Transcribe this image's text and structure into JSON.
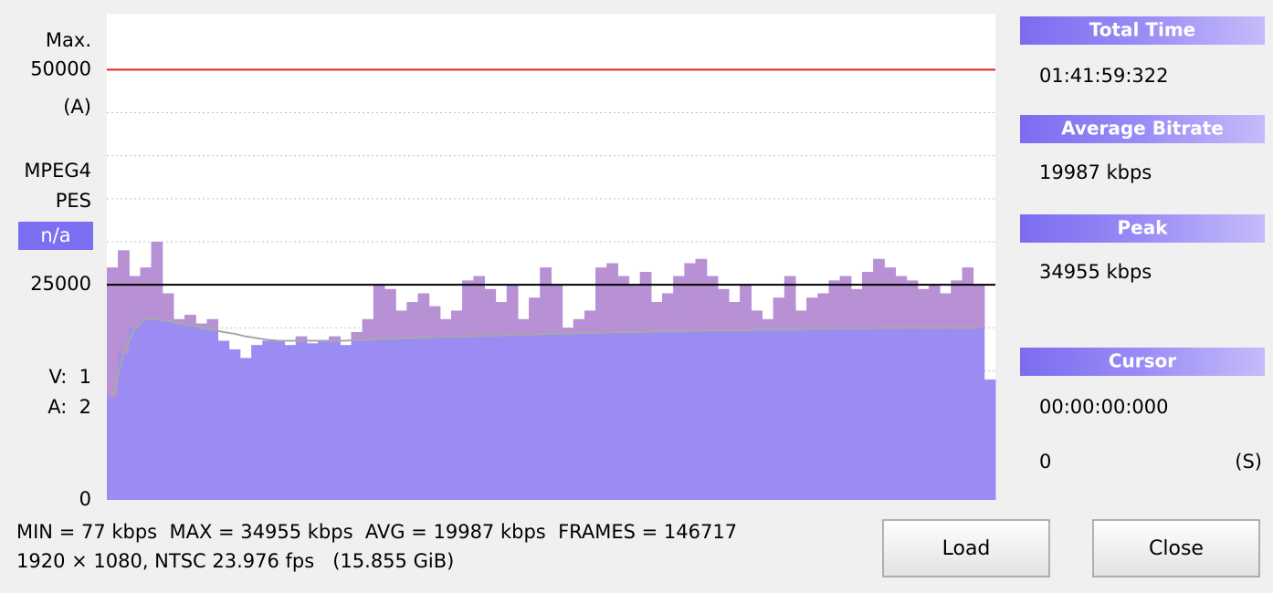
{
  "chart_data": {
    "type": "bar",
    "values": [
      27000,
      29000,
      26000,
      27000,
      30000,
      24000,
      21000,
      21500,
      20500,
      21000,
      18500,
      17500,
      16500,
      18000,
      18500,
      18500,
      18000,
      19000,
      18200,
      18500,
      19000,
      18000,
      19500,
      21000,
      25000,
      24500,
      22000,
      23000,
      24000,
      22500,
      21000,
      22000,
      25500,
      26000,
      24500,
      23000,
      25000,
      21000,
      23500,
      27000,
      25000,
      20000,
      21000,
      22000,
      27000,
      27500,
      26000,
      25000,
      26500,
      23000,
      24000,
      26000,
      27500,
      28000,
      26000,
      24500,
      23000,
      25000,
      22000,
      21000,
      23500,
      26000,
      22000,
      23500,
      24000,
      25500,
      26000,
      24500,
      26500,
      28000,
      27000,
      26000,
      25500,
      24500,
      25000,
      24000,
      25500,
      27000,
      25000,
      14000
    ],
    "average": [
      12000,
      17000,
      20000,
      21000,
      21000,
      20800,
      20500,
      20300,
      20000,
      19800,
      19500,
      19300,
      19000,
      18800,
      18600,
      18500,
      18500,
      18500,
      18500,
      18500,
      18500,
      18500,
      18600,
      18600,
      18700,
      18700,
      18800,
      18800,
      18900,
      18900,
      19000,
      19000,
      19000,
      19100,
      19100,
      19100,
      19200,
      19200,
      19200,
      19300,
      19300,
      19300,
      19400,
      19400,
      19400,
      19500,
      19500,
      19500,
      19500,
      19600,
      19600,
      19600,
      19600,
      19700,
      19700,
      19700,
      19700,
      19700,
      19800,
      19800,
      19800,
      19800,
      19800,
      19900,
      19900,
      19900,
      19900,
      19900,
      19900,
      20000,
      20000,
      20000,
      20000,
      20000,
      20000,
      20000,
      20000,
      20000,
      20000,
      null
    ],
    "color": "#9b8cf4",
    "above_average_color": "#b890d4",
    "average_color": "#a8a8a8",
    "ylim": [
      0,
      56500
    ],
    "yticks": [
      0,
      25000,
      50000
    ],
    "gridlines": [
      5000,
      10000,
      15000,
      20000,
      30000,
      35000,
      40000,
      45000
    ],
    "max_line_color": "#e02020",
    "mid_line_color": "#000000",
    "left_labels": [
      "Max.",
      "(A)",
      "MPEG4",
      "PES",
      "n/a",
      "V:  1",
      "A:  2"
    ]
  },
  "panel": {
    "total_time": {
      "title": "Total Time",
      "value": "01:41:59:322"
    },
    "average_bitrate": {
      "title": "Average Bitrate",
      "value": "19987 kbps"
    },
    "peak": {
      "title": "Peak",
      "value": "34955 kbps"
    },
    "cursor": {
      "title": "Cursor",
      "value": "00:00:00:000",
      "position": "0",
      "unit": "(S)"
    }
  },
  "footer": {
    "line1": "MIN = 77 kbps  MAX = 34955 kbps  AVG = 19987 kbps  FRAMES = 146717",
    "line2": "1920 × 1080, NTSC 23.976 fps   (15.855 GiB)"
  },
  "buttons": [
    "Load",
    "Close"
  ]
}
